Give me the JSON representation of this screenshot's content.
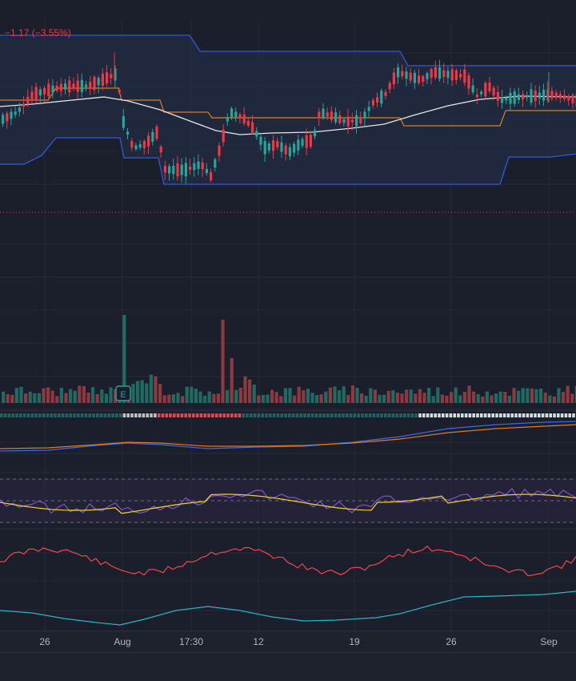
{
  "price_change": "−1.17 (−3.55%)",
  "x_axis_labels": [
    "26",
    "Aug",
    "17:30",
    "12",
    "19",
    "26",
    "Sep"
  ],
  "colors": {
    "background": "#1b1f2b",
    "grid": "#262a36",
    "up": "#26a69a",
    "down": "#f23645",
    "band": "#3359d6",
    "median": "#e07b1f",
    "ma": "#e6e6e6",
    "rsi": "#7e57c2",
    "rsi_ma": "#f5d42b",
    "osc_red": "#f0484a",
    "osc_cyan": "#25b5c5"
  },
  "earnings_marker": "E",
  "icons": [
    "earnings-icon"
  ]
}
